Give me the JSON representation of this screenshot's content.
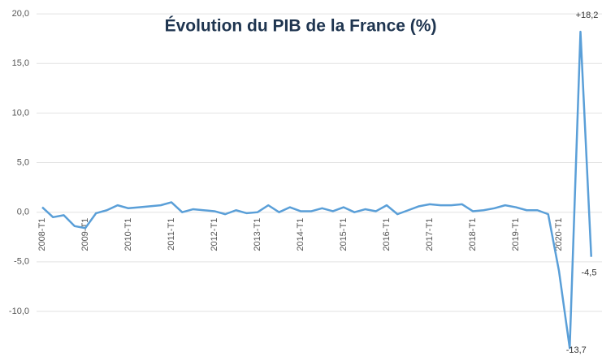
{
  "chart_data": {
    "type": "line",
    "title": "Évolution du PIB de la France (%)",
    "categories": [
      "2008-T1",
      null,
      null,
      null,
      "2009-T1",
      null,
      null,
      null,
      "2010-T1",
      null,
      null,
      null,
      "2011-T1",
      null,
      null,
      null,
      "2012-T1",
      null,
      null,
      null,
      "2013-T1",
      null,
      null,
      null,
      "2014-T1",
      null,
      null,
      null,
      "2015-T1",
      null,
      null,
      null,
      "2016-T1",
      null,
      null,
      null,
      "2017-T1",
      null,
      null,
      null,
      "2018-T1",
      null,
      null,
      null,
      "2019-T1",
      null,
      null,
      null,
      "2020-T1",
      null,
      null,
      null
    ],
    "series": [
      {
        "color": "#5a9fd8",
        "values": [
          0.5,
          -0.5,
          -0.3,
          -1.4,
          -1.6,
          -0.1,
          0.2,
          0.7,
          0.4,
          0.5,
          0.6,
          0.7,
          1.0,
          0.0,
          0.3,
          0.2,
          0.1,
          -0.2,
          0.2,
          -0.1,
          0.0,
          0.7,
          0.0,
          0.5,
          0.1,
          0.1,
          0.4,
          0.1,
          0.5,
          0.0,
          0.3,
          0.1,
          0.7,
          -0.2,
          0.2,
          0.6,
          0.8,
          0.7,
          0.7,
          0.8,
          0.1,
          0.2,
          0.4,
          0.7,
          0.5,
          0.2,
          0.2,
          -0.2,
          -5.9,
          -13.7,
          18.2,
          -4.5
        ],
        "value_labels": [
          null,
          null,
          null,
          null,
          null,
          null,
          null,
          null,
          null,
          null,
          null,
          null,
          null,
          null,
          null,
          null,
          null,
          null,
          null,
          null,
          null,
          null,
          null,
          null,
          null,
          null,
          null,
          null,
          null,
          null,
          null,
          null,
          null,
          null,
          null,
          null,
          null,
          null,
          null,
          null,
          null,
          null,
          null,
          null,
          null,
          null,
          null,
          null,
          null,
          "-13,7",
          "+18,2",
          "-4,5"
        ]
      }
    ],
    "ylim": [
      -14.5,
      21.4
    ],
    "yticks": [
      {
        "value": -10,
        "label": "-10,0"
      },
      {
        "value": -5,
        "label": "-5,0"
      },
      {
        "value": 0,
        "label": "0,0"
      },
      {
        "value": 5,
        "label": "5,0"
      },
      {
        "value": 10,
        "label": "10,0"
      },
      {
        "value": 15,
        "label": "15,0"
      },
      {
        "value": 20,
        "label": "20,0"
      }
    ],
    "grid": true
  }
}
